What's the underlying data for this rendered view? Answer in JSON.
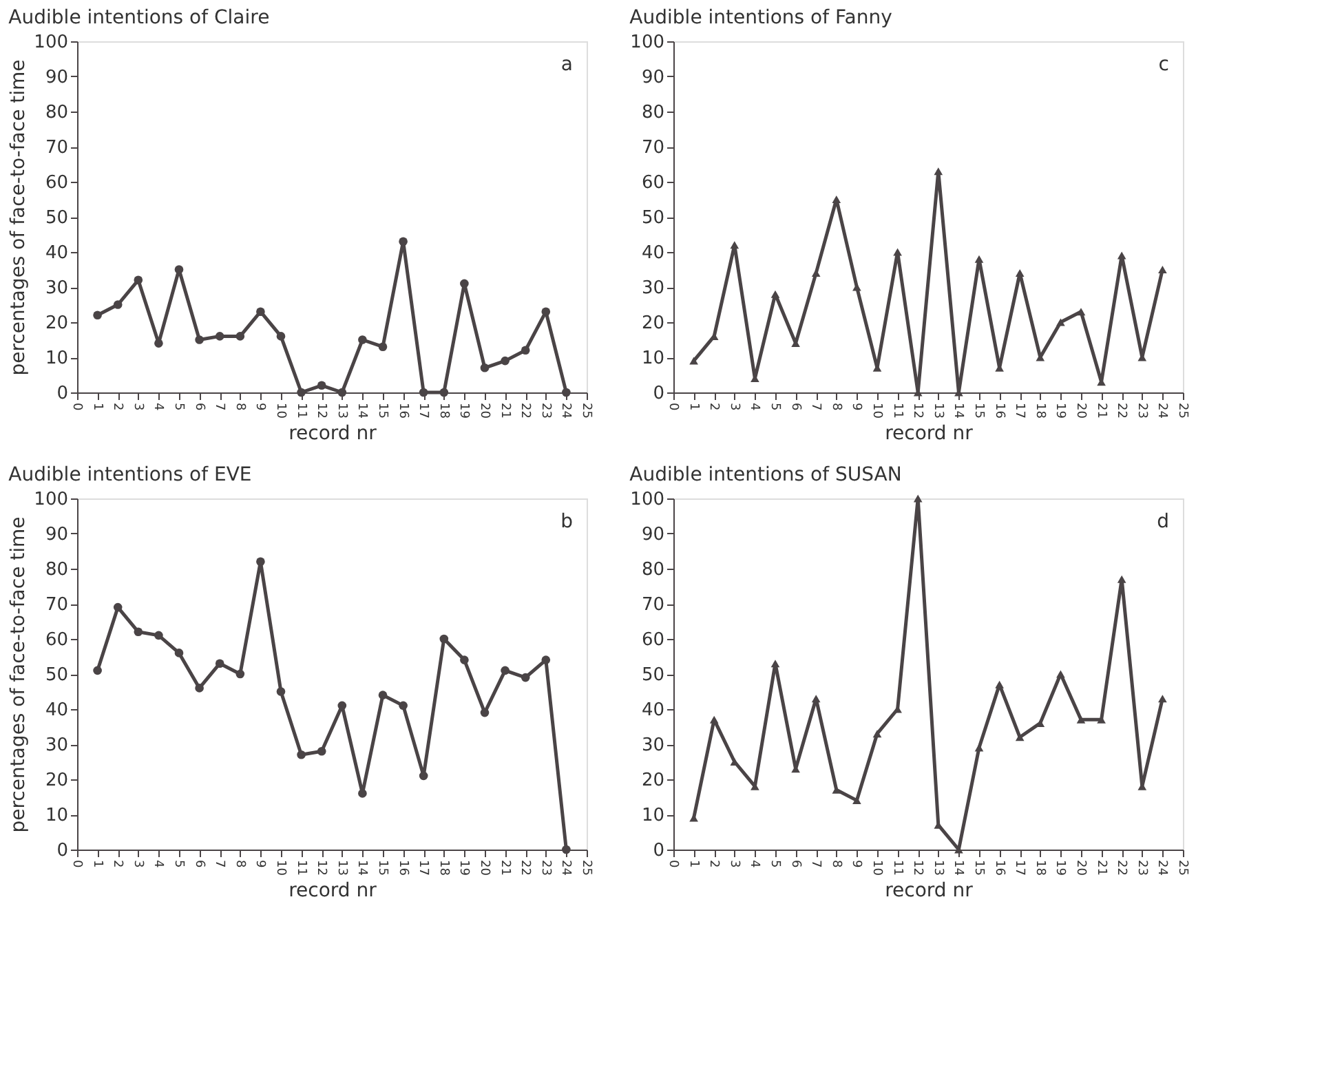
{
  "chart_data": [
    {
      "type": "line",
      "title": "Audible intentions of Claire",
      "xlabel": "record nr",
      "ylabel": "percentages of face-to-face time",
      "annotations": [
        "a"
      ],
      "marker": "circle",
      "grid": false,
      "color": "#4a4446",
      "x": [
        1,
        2,
        3,
        4,
        5,
        6,
        7,
        8,
        9,
        10,
        11,
        12,
        13,
        14,
        15,
        16,
        17,
        18,
        19,
        20,
        21,
        22,
        23,
        24
      ],
      "values": [
        22,
        25,
        32,
        14,
        35,
        15,
        16,
        16,
        23,
        16,
        0,
        2,
        0,
        15,
        13,
        43,
        0,
        0,
        31,
        7,
        9,
        12,
        23,
        0
      ],
      "xlim": [
        0,
        25
      ],
      "xticks": [
        0,
        1,
        2,
        3,
        4,
        5,
        6,
        7,
        8,
        9,
        10,
        11,
        12,
        13,
        14,
        15,
        16,
        17,
        18,
        19,
        20,
        21,
        22,
        23,
        24,
        25
      ],
      "ylim": [
        0,
        100
      ],
      "yticks": [
        0,
        10,
        20,
        30,
        40,
        50,
        60,
        70,
        80,
        90,
        100
      ]
    },
    {
      "type": "line",
      "title": "Audible intentions of Fanny",
      "xlabel": "record nr",
      "annotations": [
        "c"
      ],
      "marker": "triangle",
      "grid": false,
      "color": "#4a4446",
      "x": [
        1,
        2,
        3,
        4,
        5,
        6,
        7,
        8,
        9,
        10,
        11,
        12,
        13,
        14,
        15,
        16,
        17,
        18,
        19,
        20,
        21,
        22,
        23,
        24
      ],
      "values": [
        9,
        16,
        42,
        4,
        28,
        14,
        34,
        55,
        30,
        7,
        40,
        0,
        63,
        0,
        38,
        7,
        34,
        10,
        20,
        23,
        3,
        39,
        10,
        35
      ],
      "xlim": [
        0,
        25
      ],
      "xticks": [
        0,
        1,
        2,
        3,
        4,
        5,
        6,
        7,
        8,
        9,
        10,
        11,
        12,
        13,
        14,
        15,
        16,
        17,
        18,
        19,
        20,
        21,
        22,
        23,
        24,
        25
      ],
      "ylim": [
        0,
        100
      ],
      "yticks": [
        0,
        10,
        20,
        30,
        40,
        50,
        60,
        70,
        80,
        90,
        100
      ]
    },
    {
      "type": "line",
      "title": "Audible intentions of EVE",
      "xlabel": "record nr",
      "ylabel": "percentages of face-to-face time",
      "annotations": [
        "b"
      ],
      "marker": "circle",
      "grid": false,
      "color": "#4a4446",
      "x": [
        1,
        2,
        3,
        4,
        5,
        6,
        7,
        8,
        9,
        10,
        11,
        12,
        13,
        14,
        15,
        16,
        17,
        18,
        19,
        20,
        21,
        22,
        23,
        24
      ],
      "values": [
        51,
        69,
        62,
        61,
        56,
        46,
        53,
        50,
        82,
        45,
        27,
        28,
        41,
        16,
        44,
        41,
        21,
        60,
        54,
        39,
        51,
        49,
        54,
        0
      ],
      "xlim": [
        0,
        25
      ],
      "xticks": [
        0,
        1,
        2,
        3,
        4,
        5,
        6,
        7,
        8,
        9,
        10,
        11,
        12,
        13,
        14,
        15,
        16,
        17,
        18,
        19,
        20,
        21,
        22,
        23,
        24,
        25
      ],
      "ylim": [
        0,
        100
      ],
      "yticks": [
        0,
        10,
        20,
        30,
        40,
        50,
        60,
        70,
        80,
        90,
        100
      ]
    },
    {
      "type": "line",
      "title": "Audible intentions of SUSAN",
      "xlabel": "record nr",
      "annotations": [
        "d"
      ],
      "marker": "triangle",
      "grid": false,
      "color": "#4a4446",
      "x": [
        1,
        2,
        3,
        4,
        5,
        6,
        7,
        8,
        9,
        10,
        11,
        12,
        13,
        14,
        15,
        16,
        17,
        18,
        19,
        20,
        21,
        22,
        23,
        24
      ],
      "values": [
        9,
        37,
        25,
        18,
        53,
        23,
        43,
        17,
        14,
        33,
        40,
        100,
        7,
        0,
        29,
        47,
        32,
        36,
        50,
        37,
        37,
        77,
        18,
        43
      ],
      "xlim": [
        0,
        25
      ],
      "xticks": [
        0,
        1,
        2,
        3,
        4,
        5,
        6,
        7,
        8,
        9,
        10,
        11,
        12,
        13,
        14,
        15,
        16,
        17,
        18,
        19,
        20,
        21,
        22,
        23,
        24,
        25
      ],
      "ylim": [
        0,
        100
      ],
      "yticks": [
        0,
        10,
        20,
        30,
        40,
        50,
        60,
        70,
        80,
        90,
        100
      ]
    }
  ]
}
